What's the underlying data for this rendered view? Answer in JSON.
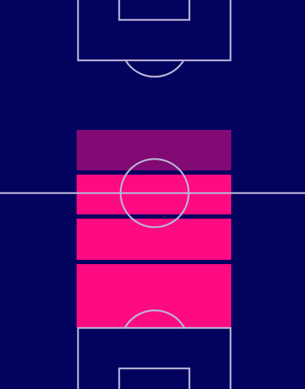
{
  "colors": {
    "pitch_background": "#03025f",
    "pitch_lines": "#b9b4d6",
    "zone_high": "#fe0a83",
    "zone_low": "#820a75"
  },
  "zones": [
    {
      "name": "zone-1",
      "intensity": "low",
      "color": "#820a75"
    },
    {
      "name": "zone-2",
      "intensity": "high",
      "color": "#fe0a83"
    },
    {
      "name": "zone-3",
      "intensity": "high",
      "color": "#fe0a83"
    },
    {
      "name": "zone-4",
      "intensity": "high",
      "color": "#fe0a83"
    }
  ]
}
